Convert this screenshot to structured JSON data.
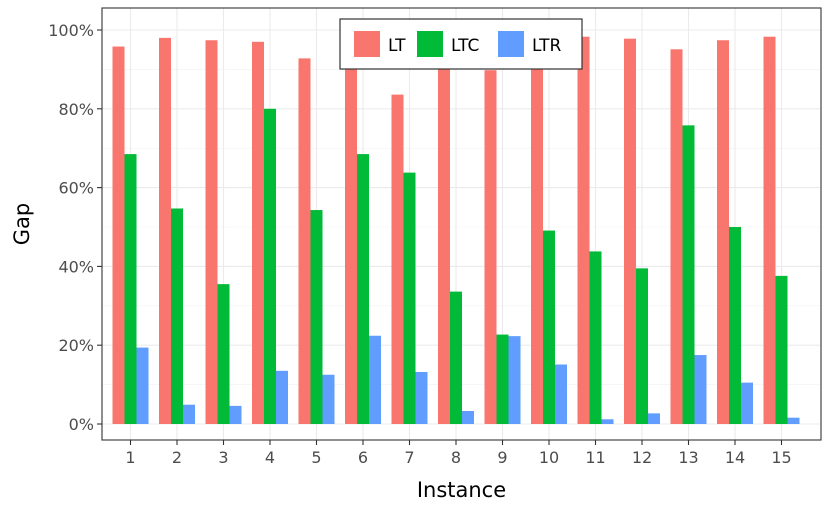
{
  "chart_data": {
    "type": "bar",
    "xlabel": "Instance",
    "ylabel": "Gap",
    "categories": [
      "1",
      "2",
      "3",
      "4",
      "5",
      "6",
      "7",
      "8",
      "9",
      "10",
      "11",
      "12",
      "13",
      "14",
      "15"
    ],
    "ylim": [
      0,
      100
    ],
    "yticks": [
      0,
      20,
      40,
      60,
      80,
      100
    ],
    "ytick_labels": [
      "0%",
      "20%",
      "40%",
      "60%",
      "80%",
      "100%"
    ],
    "grid": true,
    "legend_position": "top-center",
    "series": [
      {
        "name": "LT",
        "color": "#F8766D",
        "values": [
          95.8,
          98.0,
          97.4,
          97.0,
          92.8,
          96.4,
          83.6,
          95.5,
          89.8,
          95.5,
          98.3,
          97.8,
          95.1,
          97.4,
          98.3
        ]
      },
      {
        "name": "LTC",
        "color": "#00BA38",
        "values": [
          68.5,
          54.7,
          35.5,
          80.0,
          54.3,
          68.5,
          63.8,
          33.6,
          22.7,
          49.1,
          43.8,
          39.5,
          75.8,
          50.0,
          37.6
        ]
      },
      {
        "name": "LTR",
        "color": "#619CFF",
        "values": [
          19.4,
          4.9,
          4.6,
          13.5,
          12.5,
          22.4,
          13.2,
          3.3,
          22.3,
          15.1,
          1.2,
          2.7,
          17.5,
          10.5,
          1.6
        ]
      }
    ]
  }
}
